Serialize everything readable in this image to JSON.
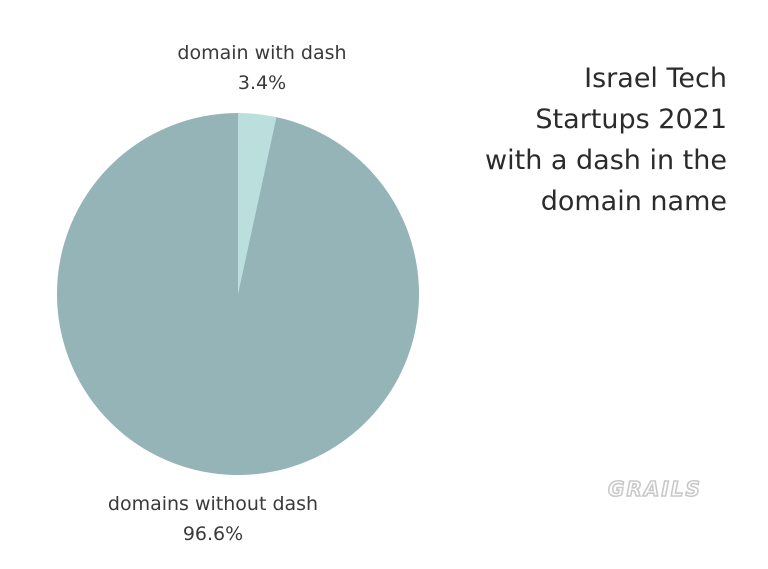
{
  "chart_data": {
    "type": "pie",
    "title": "Israel Tech\nStartups 2021\nwith a dash in the\ndomain name",
    "slices": [
      {
        "label": "domain with dash",
        "value": 3.4,
        "display": "3.4%",
        "color": "#badfdd"
      },
      {
        "label": "domains without dash",
        "value": 96.6,
        "display": "96.6%",
        "color": "#95b4b8"
      }
    ],
    "start_angle_deg": 0,
    "direction": "clockwise"
  },
  "logo": {
    "text": "GRAILS",
    "color": "#c9c9c9"
  }
}
